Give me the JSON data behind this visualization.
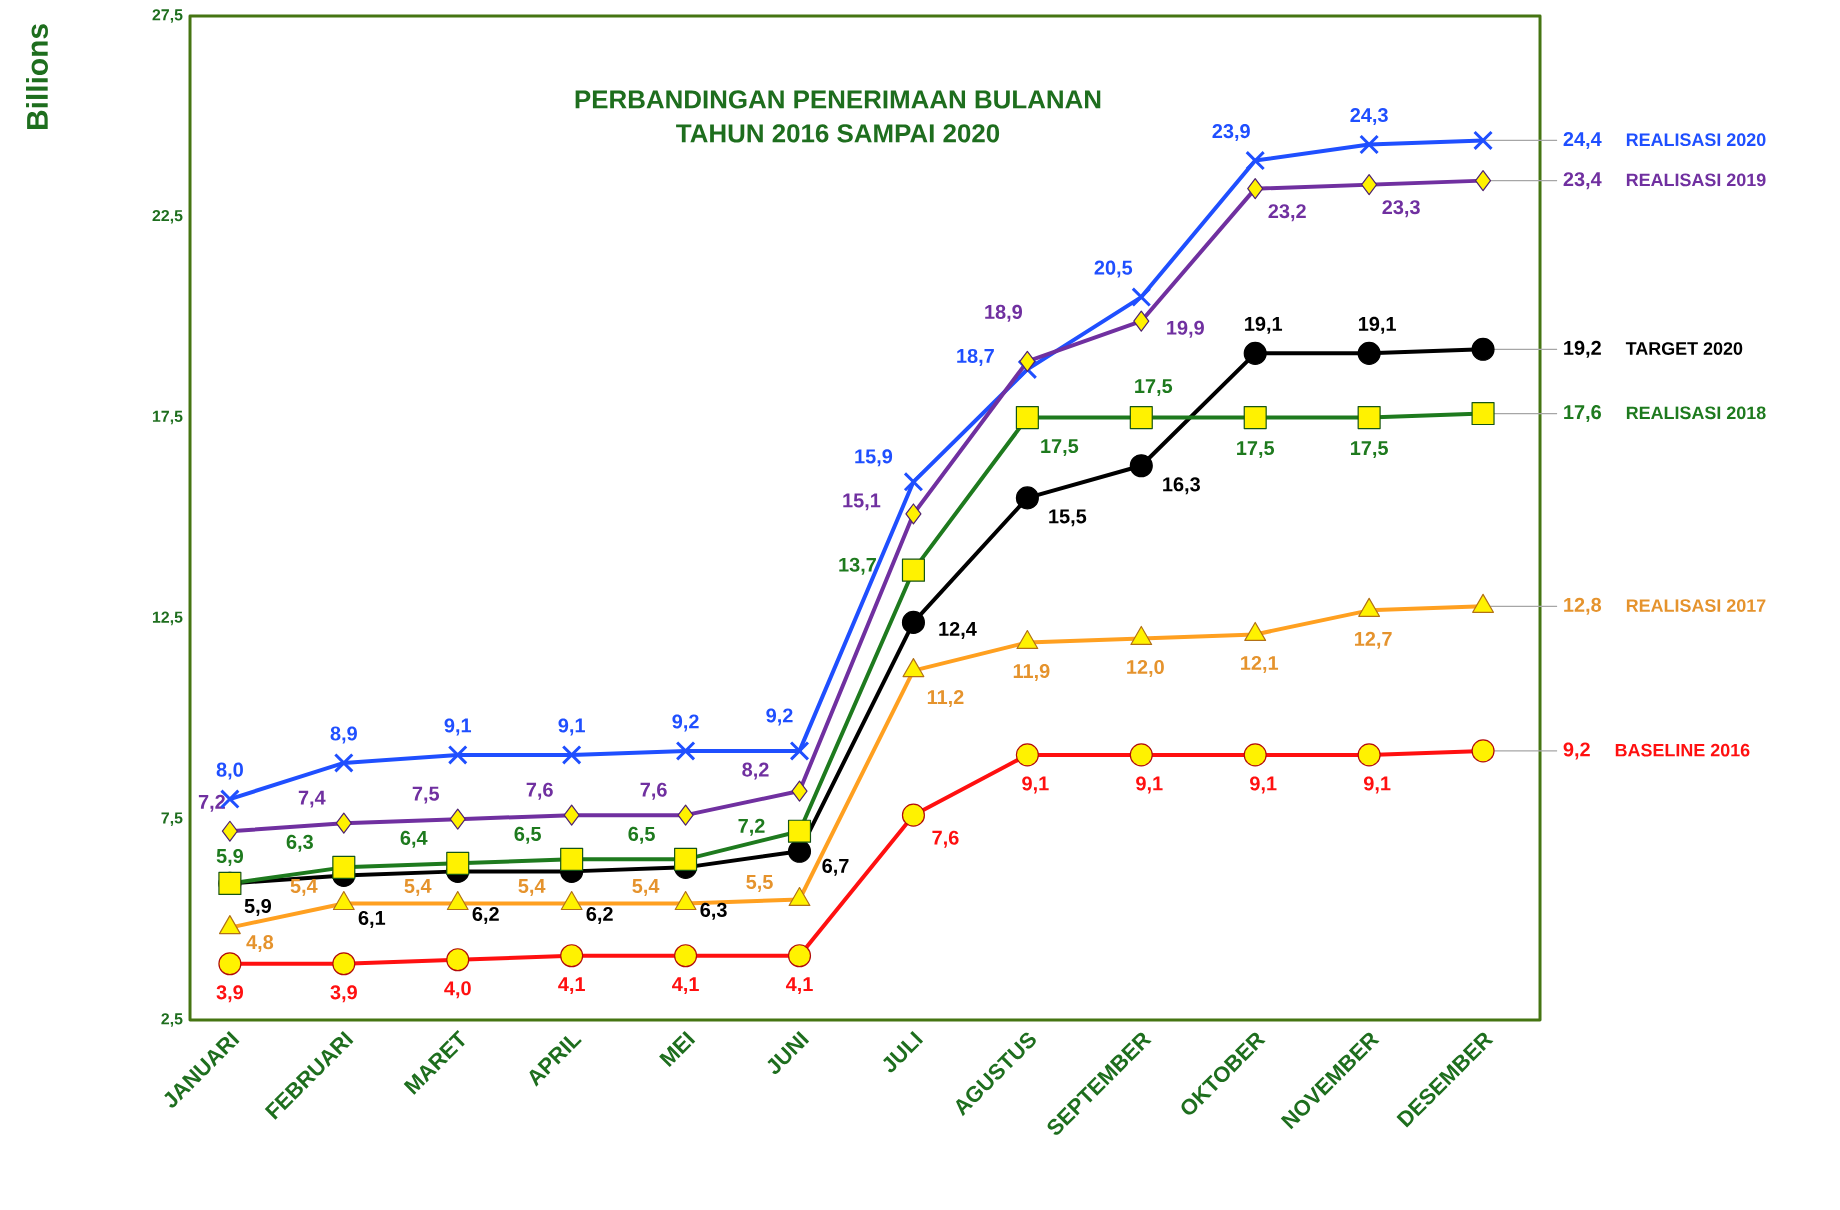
{
  "chart_data": {
    "type": "line",
    "title": "PERBANDINGAN PENERIMAAN BULANAN",
    "subtitle": "TAHUN 2016 SAMPAI 2020",
    "ylabel": "Billions",
    "categories": [
      "JANUARI",
      "FEBRUARI",
      "MARET",
      "APRIL",
      "MEI",
      "JUNI",
      "JULI",
      "AGUSTUS",
      "SEPTEMBER",
      "OKTOBER",
      "NOVEMBER",
      "DESEMBER"
    ],
    "ylim": [
      2.5,
      27.5
    ],
    "yticks": [
      {
        "value": 2.5,
        "label": "2,5"
      },
      {
        "value": 7.5,
        "label": "7,5"
      },
      {
        "value": 12.5,
        "label": "12,5"
      },
      {
        "value": 17.5,
        "label": "17,5"
      },
      {
        "value": 22.5,
        "label": "22,5"
      },
      {
        "value": 27.5,
        "label": "27,5"
      }
    ],
    "line_style": "solid",
    "series": [
      {
        "name": "REALISASI 2020",
        "color": "#1f4fff",
        "marker": "cross",
        "values": [
          8.0,
          8.9,
          9.1,
          9.1,
          9.2,
          9.2,
          15.9,
          18.7,
          20.5,
          23.9,
          24.3,
          24.4
        ],
        "value_labels": [
          "8,0",
          "8,9",
          "9,1",
          "9,1",
          "9,2",
          "9,2",
          "15,9",
          "18,7",
          "20,5",
          "23,9",
          "24,3",
          "24,4"
        ]
      },
      {
        "name": "REALISASI 2019",
        "color": "#7030a0",
        "marker": "diamond",
        "values": [
          7.2,
          7.4,
          7.5,
          7.6,
          7.6,
          8.2,
          15.1,
          18.9,
          19.9,
          23.2,
          23.3,
          23.4
        ],
        "value_labels": [
          "7,2",
          "7,4",
          "7,5",
          "7,6",
          "7,6",
          "8,2",
          "15,1",
          "18,9",
          "19,9",
          "23,2",
          "23,3",
          "23,4"
        ]
      },
      {
        "name": "TARGET 2020",
        "color": "#000000",
        "marker": "circle",
        "values": [
          5.9,
          6.1,
          6.2,
          6.2,
          6.3,
          6.7,
          12.4,
          15.5,
          16.3,
          19.1,
          19.1,
          19.2
        ],
        "value_labels": [
          "5,9",
          "6,1",
          "6,2",
          "6,2",
          "6,3",
          "6,7",
          "12,4",
          "15,5",
          "16,3",
          "19,1",
          "19,1",
          "19,2"
        ]
      },
      {
        "name": "REALISASI 2018",
        "color": "#1e7a1e",
        "marker": "square",
        "values": [
          5.9,
          6.3,
          6.4,
          6.5,
          6.5,
          7.2,
          13.7,
          17.5,
          17.5,
          17.5,
          17.5,
          17.6
        ],
        "value_labels": [
          "5,9",
          "6,3",
          "6,4",
          "6,5",
          "6,5",
          "7,2",
          "13,7",
          "17,5",
          "17,5",
          "17,5",
          "17,5",
          "17,6"
        ]
      },
      {
        "name": "REALISASI 2017",
        "color": "#ffa020",
        "marker": "triangle",
        "values": [
          4.8,
          5.4,
          5.4,
          5.4,
          5.4,
          5.5,
          11.2,
          11.9,
          12.0,
          12.1,
          12.7,
          12.8
        ],
        "value_labels": [
          "4,8",
          "5,4",
          "5,4",
          "5,4",
          "5,4",
          "5,5",
          "11,2",
          "11,9",
          "12,0",
          "12,1",
          "12,7",
          "12,8"
        ]
      },
      {
        "name": "BASELINE 2016",
        "color": "#ff1010",
        "marker": "circle",
        "values": [
          3.9,
          3.9,
          4.0,
          4.1,
          4.1,
          4.1,
          7.6,
          9.1,
          9.1,
          9.1,
          9.1,
          9.2
        ],
        "value_labels": [
          "3,9",
          "3,9",
          "4,0",
          "4,1",
          "4,1",
          "4,1",
          "7,6",
          "9,1",
          "9,1",
          "9,1",
          "9,1",
          "9,2"
        ]
      }
    ]
  }
}
